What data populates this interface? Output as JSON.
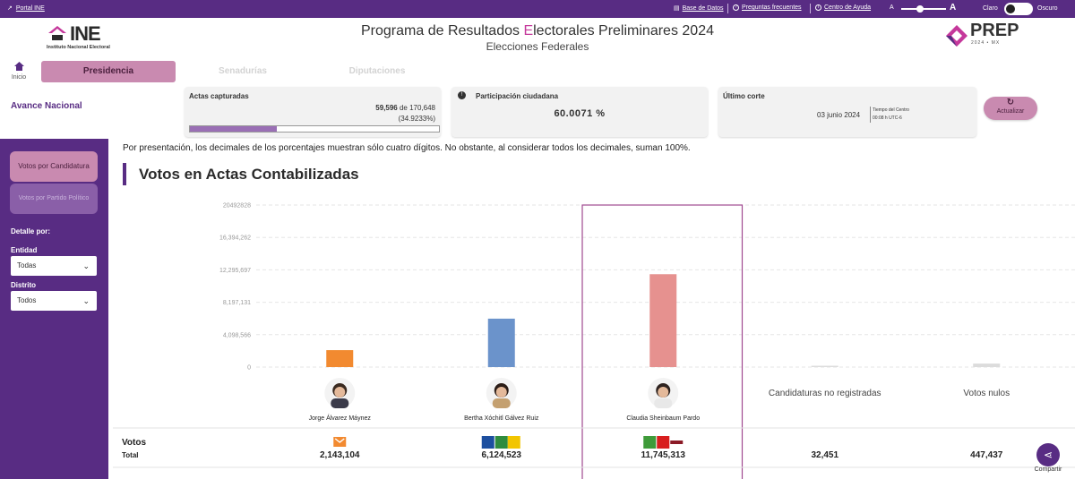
{
  "topbar": {
    "portal": "Portal INE",
    "links": [
      "Base de Datos",
      "Preguntas frecuentes",
      "Centro de Ayuda"
    ],
    "font_small": "A",
    "font_large": "A",
    "theme_light": "Claro",
    "theme_dark": "Oscuro"
  },
  "header": {
    "ine_word": "INE",
    "ine_sub": "Instituto Nacional Electoral",
    "title_pre": "Programa de Resultados ",
    "title_hl": "E",
    "title_post": "lectorales Preliminares 2024",
    "subtitle": "Elecciones Federales",
    "prep_word": "PREP",
    "prep_sub": "2024 • MX"
  },
  "nav": {
    "home": "Inicio",
    "tabs": [
      "Presidencia",
      "Senadurías",
      "Diputaciones"
    ]
  },
  "status": {
    "avance": "Avance Nacional",
    "actas_label": "Actas capturadas",
    "actas_num": "59,596",
    "actas_of": "de 170,648",
    "actas_pct": "(34.9233%)",
    "actas_fraction": 0.349233,
    "participacion_label": "Participación ciudadana",
    "participacion_value": "60.0071 %",
    "corte_label": "Último corte",
    "corte_date": "03 junio 2024",
    "corte_tz1": "Tiempo del Centro",
    "corte_tz2": "00:08 h UTC-6",
    "refresh": "Actualizar"
  },
  "sidebar": {
    "btn_candidatura": "Votos por Candidatura",
    "btn_partido": "Votos por Partido Político",
    "detalle": "Detalle por:",
    "entidad_label": "Entidad",
    "entidad_value": "Todas",
    "distrito_label": "Distrito",
    "distrito_value": "Todos"
  },
  "main": {
    "note": "Por presentación, los decimales de los porcentajes muestran sólo cuatro dígitos. No obstante, al considerar todos los decimales, suman 100%.",
    "section_title": "Votos en Actas Contabilizadas",
    "votos_label": "Votos",
    "total_label": "Total"
  },
  "share": "Compartir",
  "colors": {
    "purple": "#582c83",
    "pink": "#c98ab0",
    "mc": "#f28a30",
    "fcm": "#6b93cb",
    "shh": "#e6918f",
    "other": "#dcdcdc"
  },
  "chart_data": {
    "type": "bar",
    "title": "Votos en Actas Contabilizadas",
    "ylim": [
      0,
      20492828
    ],
    "yticks": [
      0,
      4098566,
      8197131,
      12295697,
      16394262,
      20492828
    ],
    "ytick_labels": [
      "0",
      "4,098,566",
      "8,197,131",
      "12,295,697",
      "16,394,262",
      "20492828"
    ],
    "grid": true,
    "categories": [
      "Jorge Álvarez Máynez",
      "Bertha Xóchitl Gálvez Ruiz",
      "Claudia Sheinbaum Pardo",
      "Candidaturas no registradas",
      "Votos nulos"
    ],
    "values": [
      2143104,
      6124523,
      11745313,
      32451,
      447437
    ],
    "value_labels": [
      "2,143,104",
      "6,124,523",
      "11,745,313",
      "32,451",
      "447,437"
    ],
    "bar_colors": [
      "#f28a30",
      "#6b93cb",
      "#e6918f",
      "#dcdcdc",
      "#dcdcdc"
    ],
    "highlighted": "Claudia Sheinbaum Pardo"
  }
}
